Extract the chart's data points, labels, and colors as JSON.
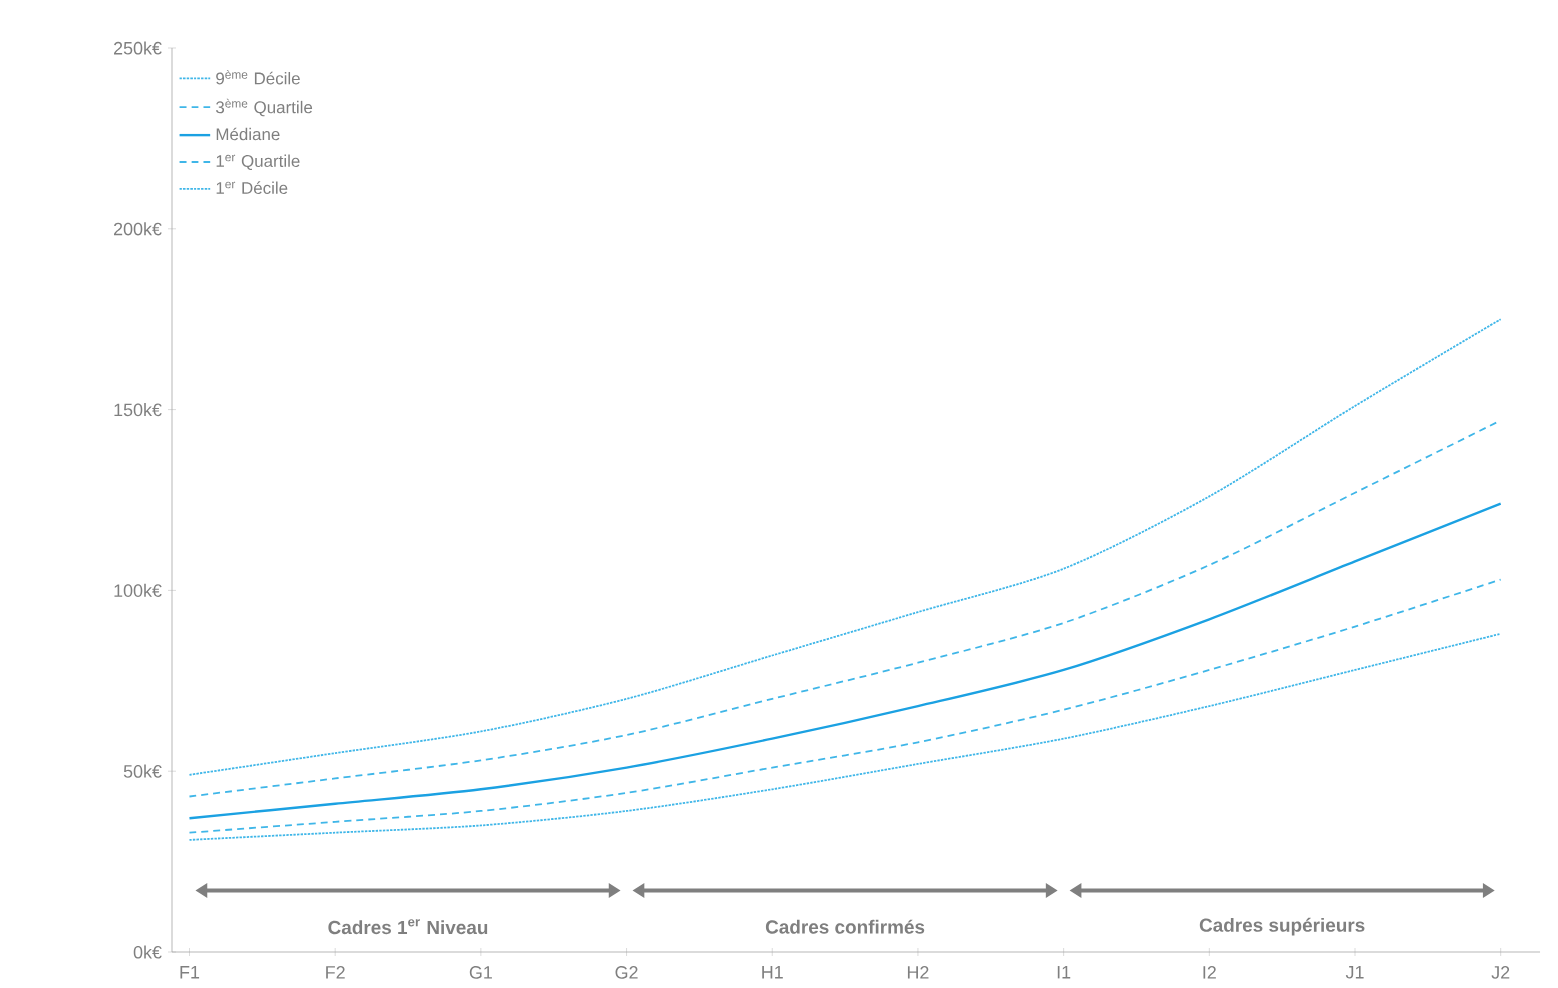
{
  "chart_data": {
    "type": "line",
    "categories": [
      "F1",
      "F2",
      "G1",
      "G2",
      "H1",
      "H2",
      "I1",
      "I2",
      "J1",
      "J2"
    ],
    "series": [
      {
        "name": "9$^{ème}$ Décile",
        "color": "#3fb6e8",
        "line_style": "dotted",
        "values": [
          49,
          55,
          61,
          70,
          82,
          94,
          106,
          126,
          151,
          175
        ]
      },
      {
        "name": "3$^{ème}$ Quartile",
        "color": "#3fb6e8",
        "line_style": "dashed",
        "values": [
          43,
          48,
          53,
          60,
          70,
          80,
          91,
          107,
          127,
          147
        ]
      },
      {
        "name": "Médiane",
        "color": "#1ba1e2",
        "line_style": "solid",
        "values": [
          37,
          41,
          45,
          51,
          59,
          68,
          78,
          92,
          108,
          124
        ]
      },
      {
        "name": "1$^{er}$ Quartile",
        "color": "#3fb6e8",
        "line_style": "dashed",
        "values": [
          33,
          36,
          39,
          44,
          51,
          58,
          67,
          78,
          90,
          103
        ]
      },
      {
        "name": "1$^{er}$ Décile",
        "color": "#3fb6e8",
        "line_style": "dotted",
        "values": [
          31,
          33,
          35,
          39,
          45,
          52,
          59,
          68,
          78,
          88
        ]
      }
    ],
    "ylim": [
      0,
      250
    ],
    "yticks": [
      {
        "value": 0,
        "label": "0k€"
      },
      {
        "value": 50,
        "label": "50k€"
      },
      {
        "value": 100,
        "label": "100k€"
      },
      {
        "value": 150,
        "label": "150k€"
      },
      {
        "value": 200,
        "label": "200k€"
      },
      {
        "value": 250,
        "label": "250k€"
      }
    ],
    "annotations": [
      "Cadres 1$^{er}$ Niveau",
      "Cadres confirmés",
      "Cadres supérieurs"
    ],
    "grid": false,
    "legend": "top left",
    "marker": "none"
  }
}
